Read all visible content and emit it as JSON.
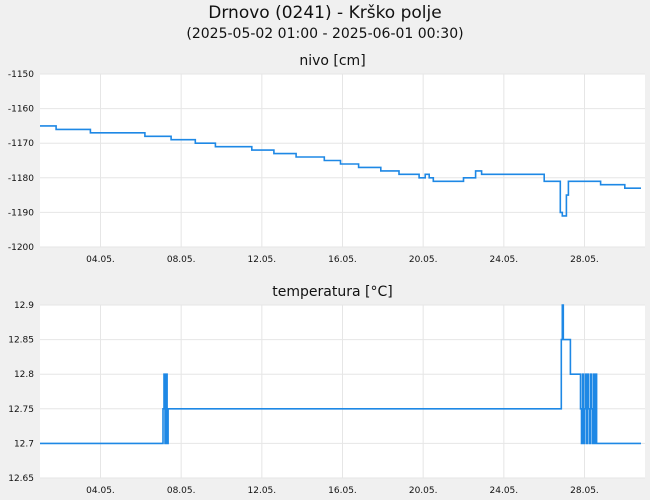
{
  "header": {
    "title": "Drnovo (0241) - Krško polje",
    "subtitle": "(2025-05-02 01:00 - 2025-06-01 00:30)"
  },
  "colors": {
    "line": "#1e88e5",
    "grid": "#e6e6e6",
    "background": "#f0f0f0",
    "plot_background": "#ffffff"
  },
  "chart_data": [
    {
      "type": "line",
      "title": "nivo [cm]",
      "xlabel": "",
      "ylabel": "",
      "xlim": [
        1,
        31
      ],
      "ylim": [
        -1200,
        -1150
      ],
      "yticks": [
        -1150,
        -1160,
        -1170,
        -1180,
        -1190,
        -1200
      ],
      "xticks": [
        {
          "v": 4,
          "label": "04.05."
        },
        {
          "v": 8,
          "label": "08.05."
        },
        {
          "v": 12,
          "label": "12.05."
        },
        {
          "v": 16,
          "label": "16.05."
        },
        {
          "v": 20,
          "label": "20.05."
        },
        {
          "v": 24,
          "label": "24.05."
        },
        {
          "v": 28,
          "label": "28.05."
        }
      ],
      "grid": true,
      "series": [
        {
          "name": "",
          "x": [
            1.0,
            1.8,
            1.8,
            3.5,
            3.5,
            6.2,
            6.2,
            7.5,
            7.5,
            8.7,
            8.7,
            9.7,
            9.7,
            11.5,
            11.5,
            12.6,
            12.6,
            13.7,
            13.7,
            15.1,
            15.1,
            15.9,
            15.9,
            16.8,
            16.8,
            17.9,
            17.9,
            18.8,
            18.8,
            19.8,
            19.8,
            20.1,
            20.1,
            20.3,
            20.3,
            20.5,
            20.5,
            22.0,
            22.0,
            22.6,
            22.6,
            22.9,
            22.9,
            23.6,
            23.6,
            24.6,
            24.6,
            26.0,
            26.0,
            26.8,
            26.8,
            26.9,
            26.9,
            27.1,
            27.1,
            27.2,
            27.2,
            27.3,
            27.3,
            28.8,
            28.8,
            30.0,
            30.0,
            30.2,
            30.2,
            30.8
          ],
          "y": [
            -1165,
            -1165,
            -1166,
            -1166,
            -1167,
            -1167,
            -1168,
            -1168,
            -1169,
            -1169,
            -1170,
            -1170,
            -1171,
            -1171,
            -1172,
            -1172,
            -1173,
            -1173,
            -1174,
            -1174,
            -1175,
            -1175,
            -1176,
            -1176,
            -1177,
            -1177,
            -1178,
            -1178,
            -1179,
            -1179,
            -1180,
            -1180,
            -1179,
            -1179,
            -1180,
            -1180,
            -1181,
            -1181,
            -1180,
            -1180,
            -1178,
            -1178,
            -1179,
            -1179,
            -1179,
            -1179,
            -1179,
            -1179,
            -1181,
            -1181,
            -1190,
            -1190,
            -1191,
            -1191,
            -1185,
            -1185,
            -1181,
            -1181,
            -1181,
            -1181,
            -1182,
            -1182,
            -1183,
            -1183,
            -1183,
            -1183
          ]
        }
      ]
    },
    {
      "type": "line",
      "title": "temperatura [°C]",
      "xlabel": "",
      "ylabel": "",
      "xlim": [
        1,
        31
      ],
      "ylim": [
        12.65,
        12.9
      ],
      "yticks": [
        12.9,
        12.85,
        12.8,
        12.75,
        12.7,
        12.65
      ],
      "xticks": [
        {
          "v": 4,
          "label": "04.05."
        },
        {
          "v": 8,
          "label": "08.05."
        },
        {
          "v": 12,
          "label": "12.05."
        },
        {
          "v": 16,
          "label": "16.05."
        },
        {
          "v": 20,
          "label": "20.05."
        },
        {
          "v": 24,
          "label": "24.05."
        },
        {
          "v": 28,
          "label": "28.05."
        }
      ],
      "grid": true,
      "series": [
        {
          "name": "",
          "x": [
            1.0,
            7.1,
            7.1,
            7.15,
            7.15,
            7.2,
            7.2,
            7.25,
            7.25,
            7.3,
            7.3,
            7.35,
            7.35,
            26.85,
            26.85,
            26.9,
            26.9,
            26.95,
            26.95,
            27.3,
            27.3,
            27.35,
            27.35,
            27.8,
            27.8,
            27.85,
            27.85,
            27.9,
            27.9,
            27.95,
            27.95,
            28.0,
            28.0,
            28.05,
            28.05,
            28.1,
            28.1,
            28.15,
            28.15,
            28.2,
            28.2,
            28.25,
            28.25,
            28.3,
            28.3,
            28.35,
            28.35,
            28.4,
            28.4,
            28.45,
            28.45,
            28.5,
            28.5,
            28.55,
            28.55,
            28.6,
            28.6,
            28.65,
            28.65,
            30.8
          ],
          "y": [
            12.7,
            12.7,
            12.75,
            12.75,
            12.8,
            12.8,
            12.7,
            12.7,
            12.8,
            12.8,
            12.7,
            12.7,
            12.75,
            12.75,
            12.85,
            12.85,
            12.9,
            12.9,
            12.85,
            12.85,
            12.8,
            12.8,
            12.8,
            12.8,
            12.75,
            12.75,
            12.7,
            12.7,
            12.8,
            12.8,
            12.7,
            12.7,
            12.75,
            12.75,
            12.8,
            12.8,
            12.7,
            12.7,
            12.8,
            12.8,
            12.75,
            12.75,
            12.7,
            12.7,
            12.8,
            12.8,
            12.75,
            12.75,
            12.7,
            12.7,
            12.8,
            12.8,
            12.7,
            12.7,
            12.8,
            12.8,
            12.7,
            12.7,
            12.7,
            12.7
          ]
        }
      ]
    }
  ]
}
